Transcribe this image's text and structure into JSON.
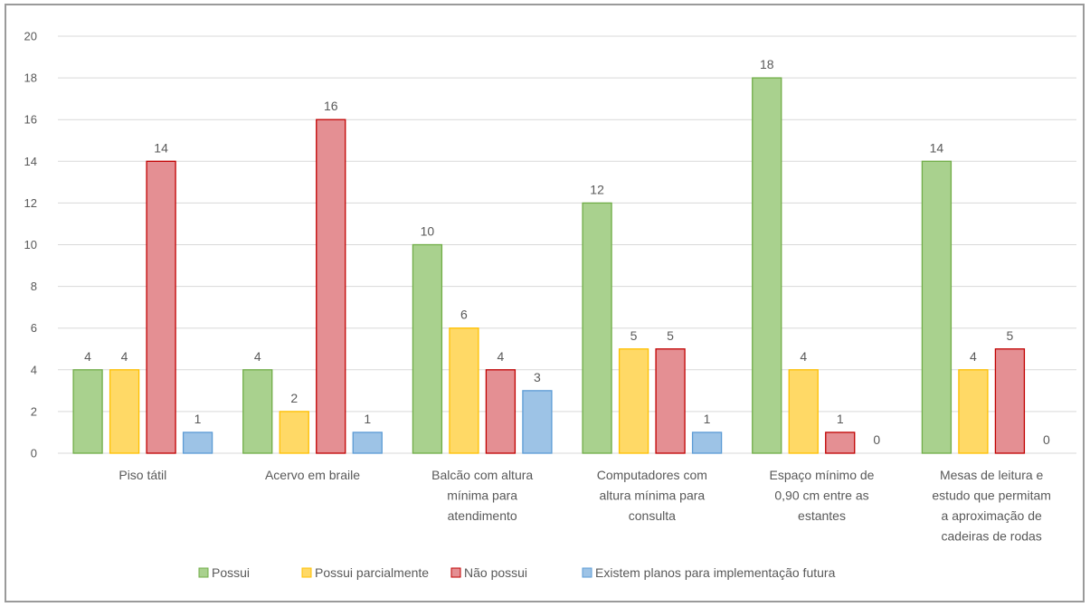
{
  "chart_data": {
    "type": "bar",
    "title": "",
    "xlabel": "",
    "ylabel": "",
    "ylim": [
      0,
      20
    ],
    "yticks": [
      0,
      2,
      4,
      6,
      8,
      10,
      12,
      14,
      16,
      18,
      20
    ],
    "grid": true,
    "legend_position": "bottom",
    "categories": [
      [
        "Piso tátil"
      ],
      [
        "Acervo em braile"
      ],
      [
        "Balcão com altura",
        "mínima para",
        "atendimento"
      ],
      [
        "Computadores com",
        "altura mínima para",
        "consulta"
      ],
      [
        "Espaço mínimo de",
        "0,90 cm entre as",
        "estantes"
      ],
      [
        "Mesas de leitura e",
        "estudo que permitam",
        "a aproximação de",
        "cadeiras de rodas"
      ]
    ],
    "series": [
      {
        "name": "Possui",
        "values": [
          4,
          4,
          10,
          12,
          18,
          14
        ],
        "fill": "#a9d18e",
        "stroke": "#70ad47"
      },
      {
        "name": "Possui parcialmente",
        "values": [
          4,
          2,
          6,
          5,
          4,
          4
        ],
        "fill": "#ffd966",
        "stroke": "#ffc000"
      },
      {
        "name": "Não possui",
        "values": [
          14,
          16,
          4,
          5,
          1,
          5
        ],
        "fill": "#e48f93",
        "stroke": "#c00000"
      },
      {
        "name": "Existem planos para implementação futura",
        "values": [
          1,
          1,
          3,
          1,
          0,
          0
        ],
        "fill": "#9dc3e6",
        "stroke": "#5b9bd5"
      }
    ]
  }
}
